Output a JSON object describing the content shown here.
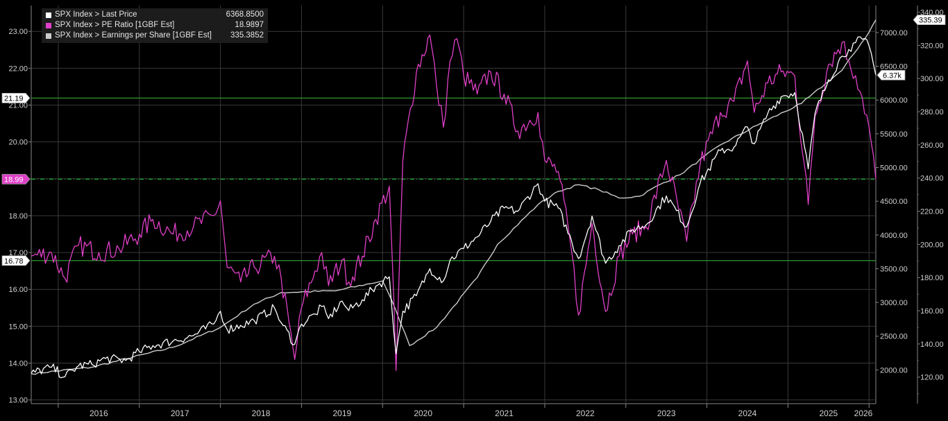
{
  "legend": {
    "items": [
      {
        "name": "SPX Index > Last Price",
        "value": "6368.8500",
        "color": "#ffffff"
      },
      {
        "name": "SPX Index > PE Ratio [1GBF Est]",
        "value": "18.9897",
        "color": "#e040c8"
      },
      {
        "name": "SPX Index > Earnings per Share [1GBF Est]",
        "value": "335.3852",
        "color": "#cccccc"
      }
    ]
  },
  "markers": {
    "left_top": "21.19",
    "left_current": "18.99",
    "left_bottom": "16.78",
    "right_eps": "335.39",
    "right_price": "6.37k"
  },
  "chart_data": {
    "type": "line",
    "x_axis": {
      "tick_labels": [
        "2016",
        "2017",
        "2018",
        "2019",
        "2020",
        "2021",
        "2022",
        "2023",
        "2024",
        "2025",
        "2026"
      ],
      "range": [
        "2015-09",
        "2026-02"
      ]
    },
    "y_left": {
      "ticks": [
        "13.00",
        "14.00",
        "15.00",
        "16.00",
        "17.00",
        "18.00",
        "19.00",
        "20.00",
        "21.00",
        "22.00",
        "23.00"
      ],
      "range": [
        12.9,
        23.7
      ]
    },
    "y_price": {
      "ticks": [
        "2000.00",
        "2500.00",
        "3000.00",
        "3500.00",
        "4000.00",
        "4500.00",
        "5000.00",
        "5500.00",
        "6000.00",
        "6500.00",
        "7000.00"
      ],
      "range": [
        1500,
        7400
      ]
    },
    "y_eps": {
      "ticks": [
        "120.00",
        "140.00",
        "160.00",
        "180.00",
        "200.00",
        "220.00",
        "240.00",
        "260.00",
        "280.00",
        "300.00",
        "320.00",
        "340.00"
      ],
      "range": [
        104,
        344
      ]
    },
    "horizontal_lines": [
      {
        "value": 21.19,
        "style": "solid",
        "color": "#2e9a2e"
      },
      {
        "value": 18.99,
        "style": "dash-dot",
        "color": "#22c033"
      },
      {
        "value": 16.78,
        "style": "solid",
        "color": "#2e9a2e"
      }
    ],
    "grid": true,
    "series": [
      {
        "name": "SPX Index > Last Price",
        "axis": "price",
        "color": "#ffffff",
        "points": [
          [
            "2015-09",
            1950
          ],
          [
            "2015-12",
            2040
          ],
          [
            "2016-02",
            1900
          ],
          [
            "2016-04",
            2060
          ],
          [
            "2016-06",
            2080
          ],
          [
            "2016-08",
            2170
          ],
          [
            "2016-11",
            2140
          ],
          [
            "2017-01",
            2270
          ],
          [
            "2017-03",
            2360
          ],
          [
            "2017-06",
            2430
          ],
          [
            "2017-09",
            2510
          ],
          [
            "2017-12",
            2680
          ],
          [
            "2018-01",
            2870
          ],
          [
            "2018-02",
            2600
          ],
          [
            "2018-04",
            2660
          ],
          [
            "2018-06",
            2730
          ],
          [
            "2018-09",
            2920
          ],
          [
            "2018-10",
            2700
          ],
          [
            "2018-12",
            2380
          ],
          [
            "2019-01",
            2680
          ],
          [
            "2019-03",
            2830
          ],
          [
            "2019-04",
            2940
          ],
          [
            "2019-05",
            2760
          ],
          [
            "2019-07",
            3020
          ],
          [
            "2019-08",
            2880
          ],
          [
            "2019-10",
            3040
          ],
          [
            "2019-12",
            3240
          ],
          [
            "2020-02",
            3380
          ],
          [
            "2020-03",
            2240
          ],
          [
            "2020-04",
            2870
          ],
          [
            "2020-06",
            3100
          ],
          [
            "2020-08",
            3500
          ],
          [
            "2020-10",
            3320
          ],
          [
            "2020-11",
            3630
          ],
          [
            "2021-01",
            3800
          ],
          [
            "2021-03",
            3970
          ],
          [
            "2021-05",
            4200
          ],
          [
            "2021-07",
            4400
          ],
          [
            "2021-09",
            4350
          ],
          [
            "2021-12",
            4760
          ],
          [
            "2022-01",
            4500
          ],
          [
            "2022-03",
            4400
          ],
          [
            "2022-05",
            3900
          ],
          [
            "2022-06",
            3650
          ],
          [
            "2022-08",
            4280
          ],
          [
            "2022-10",
            3580
          ],
          [
            "2022-12",
            3840
          ],
          [
            "2023-02",
            4080
          ],
          [
            "2023-04",
            4150
          ],
          [
            "2023-07",
            4580
          ],
          [
            "2023-10",
            4120
          ],
          [
            "2023-12",
            4770
          ],
          [
            "2024-03",
            5250
          ],
          [
            "2024-05",
            5300
          ],
          [
            "2024-07",
            5600
          ],
          [
            "2024-08",
            5350
          ],
          [
            "2024-10",
            5800
          ],
          [
            "2024-12",
            6050
          ],
          [
            "2025-02",
            6110
          ],
          [
            "2025-04",
            4980
          ],
          [
            "2025-05",
            5800
          ],
          [
            "2025-07",
            6300
          ],
          [
            "2025-09",
            6650
          ],
          [
            "2025-10",
            6750
          ],
          [
            "2025-11",
            6850
          ],
          [
            "2025-12",
            6900
          ],
          [
            "2026-01",
            6800
          ],
          [
            "2026-02",
            6368.85
          ]
        ]
      },
      {
        "name": "SPX Index > PE Ratio [1GBF Est]",
        "axis": "left",
        "color": "#e040c8",
        "points": [
          [
            "2015-09",
            16.9
          ],
          [
            "2015-12",
            17.0
          ],
          [
            "2016-02",
            16.3
          ],
          [
            "2016-04",
            17.2
          ],
          [
            "2016-07",
            17.0
          ],
          [
            "2016-10",
            17.1
          ],
          [
            "2017-01",
            17.5
          ],
          [
            "2017-03",
            17.9
          ],
          [
            "2017-06",
            17.5
          ],
          [
            "2017-09",
            17.7
          ],
          [
            "2017-12",
            18.0
          ],
          [
            "2018-01",
            18.4
          ],
          [
            "2018-02",
            16.6
          ],
          [
            "2018-04",
            16.2
          ],
          [
            "2018-06",
            16.6
          ],
          [
            "2018-09",
            16.9
          ],
          [
            "2018-10",
            16.3
          ],
          [
            "2018-12",
            14.1
          ],
          [
            "2019-01",
            15.5
          ],
          [
            "2019-03",
            16.5
          ],
          [
            "2019-04",
            17.0
          ],
          [
            "2019-05",
            16.1
          ],
          [
            "2019-07",
            16.8
          ],
          [
            "2019-08",
            16.2
          ],
          [
            "2019-10",
            16.9
          ],
          [
            "2019-12",
            17.9
          ],
          [
            "2020-02",
            18.8
          ],
          [
            "2020-03",
            13.8
          ],
          [
            "2020-04",
            19.5
          ],
          [
            "2020-06",
            21.9
          ],
          [
            "2020-08",
            22.9
          ],
          [
            "2020-09",
            21.5
          ],
          [
            "2020-10",
            20.4
          ],
          [
            "2020-11",
            22.2
          ],
          [
            "2020-12",
            22.8
          ],
          [
            "2021-01",
            21.8
          ],
          [
            "2021-03",
            21.3
          ],
          [
            "2021-05",
            21.9
          ],
          [
            "2021-07",
            21.3
          ],
          [
            "2021-09",
            20.3
          ],
          [
            "2021-12",
            20.8
          ],
          [
            "2022-01",
            19.5
          ],
          [
            "2022-03",
            19.2
          ],
          [
            "2022-05",
            17.0
          ],
          [
            "2022-06",
            15.3
          ],
          [
            "2022-08",
            17.8
          ],
          [
            "2022-10",
            15.4
          ],
          [
            "2022-12",
            16.9
          ],
          [
            "2023-02",
            17.5
          ],
          [
            "2023-04",
            17.7
          ],
          [
            "2023-07",
            19.5
          ],
          [
            "2023-10",
            17.3
          ],
          [
            "2023-12",
            19.4
          ],
          [
            "2024-03",
            20.8
          ],
          [
            "2024-05",
            21.1
          ],
          [
            "2024-07",
            22.2
          ],
          [
            "2024-08",
            20.8
          ],
          [
            "2024-10",
            21.6
          ],
          [
            "2024-12",
            21.9
          ],
          [
            "2025-02",
            21.8
          ],
          [
            "2025-04",
            18.3
          ],
          [
            "2025-05",
            20.7
          ],
          [
            "2025-07",
            22.1
          ],
          [
            "2025-09",
            22.7
          ],
          [
            "2025-10",
            22.2
          ],
          [
            "2025-11",
            21.8
          ],
          [
            "2025-12",
            21.2
          ],
          [
            "2026-01",
            20.4
          ],
          [
            "2026-02",
            18.99
          ]
        ]
      },
      {
        "name": "SPX Index > Earnings per Share [1GBF Est]",
        "axis": "eps",
        "color": "#cccccc",
        "points": [
          [
            "2015-09",
            122
          ],
          [
            "2016-06",
            126
          ],
          [
            "2017-06",
            138
          ],
          [
            "2018-01",
            150
          ],
          [
            "2018-06",
            164
          ],
          [
            "2018-10",
            171
          ],
          [
            "2019-06",
            172
          ],
          [
            "2020-01",
            178
          ],
          [
            "2020-03",
            160
          ],
          [
            "2020-05",
            139
          ],
          [
            "2020-09",
            150
          ],
          [
            "2021-03",
            180
          ],
          [
            "2021-06",
            200
          ],
          [
            "2021-12",
            224
          ],
          [
            "2022-03",
            232
          ],
          [
            "2022-06",
            236
          ],
          [
            "2022-09",
            233
          ],
          [
            "2022-12",
            228
          ],
          [
            "2023-03",
            229
          ],
          [
            "2023-06",
            236
          ],
          [
            "2023-09",
            242
          ],
          [
            "2024-03",
            260
          ],
          [
            "2024-09",
            273
          ],
          [
            "2025-03",
            285
          ],
          [
            "2025-09",
            305
          ],
          [
            "2026-01",
            328
          ],
          [
            "2026-02",
            335.39
          ]
        ]
      }
    ]
  }
}
